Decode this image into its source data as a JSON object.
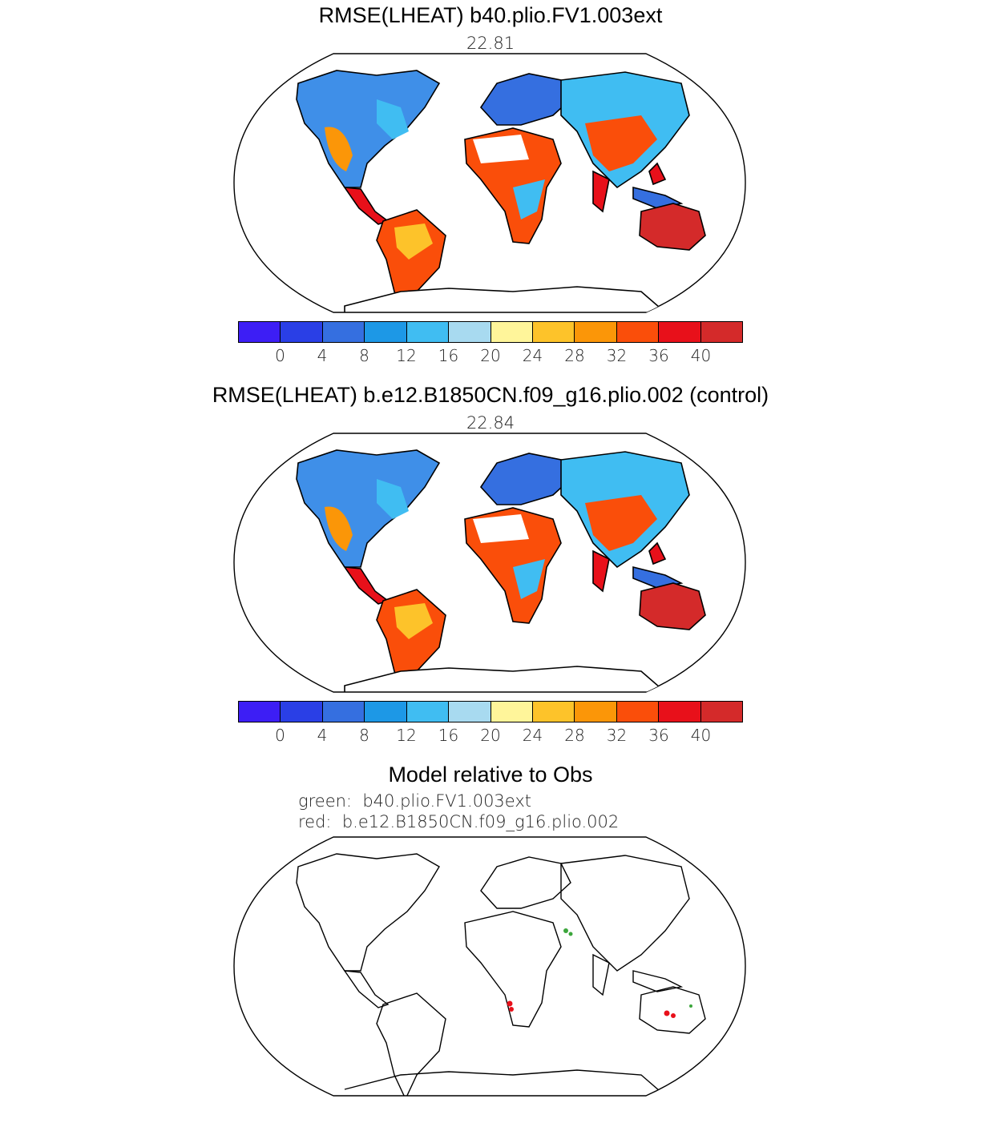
{
  "panels": [
    {
      "title": "RMSE(LHEAT) b40.plio.FV1.003ext",
      "subtitle": "22.81",
      "colorbar": {
        "colors": [
          "#3d1ef5",
          "#2a3fe6",
          "#356fe0",
          "#1d98e6",
          "#40bdf2",
          "#a8daf0",
          "#fff59a",
          "#fdc32a",
          "#fb9608",
          "#fa4e0a",
          "#e8101a",
          "#d42a2a"
        ],
        "tick_labels": [
          "0",
          "4",
          "8",
          "12",
          "16",
          "20",
          "24",
          "28",
          "32",
          "36",
          "40"
        ]
      }
    },
    {
      "title": "RMSE(LHEAT) b.e12.B1850CN.f09_g16.plio.002 (control)",
      "subtitle": "22.84",
      "colorbar": {
        "colors": [
          "#3d1ef5",
          "#2a3fe6",
          "#356fe0",
          "#1d98e6",
          "#40bdf2",
          "#a8daf0",
          "#fff59a",
          "#fdc32a",
          "#fb9608",
          "#fa4e0a",
          "#e8101a",
          "#d42a2a"
        ],
        "tick_labels": [
          "0",
          "4",
          "8",
          "12",
          "16",
          "20",
          "24",
          "28",
          "32",
          "36",
          "40"
        ]
      }
    },
    {
      "title": "Model relative to Obs",
      "legend_green": "green:  b40.plio.FV1.003ext",
      "legend_red": "red:  b.e12.B1850CN.f09_g16.plio.002"
    }
  ]
}
